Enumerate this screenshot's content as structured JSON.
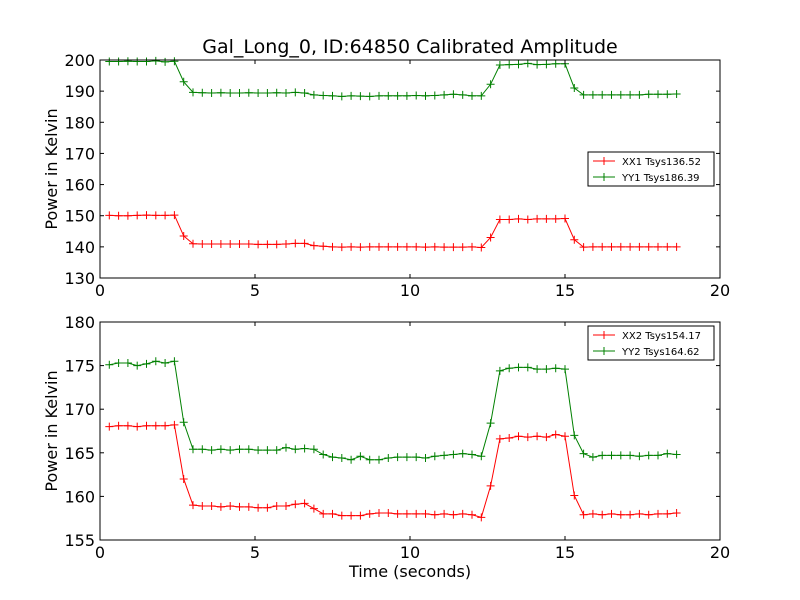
{
  "title": "Gal_Long_0, ID:64850 Calibrated Amplitude",
  "colors": {
    "xx": "#ff0000",
    "yy": "#008000",
    "axes": "#000000",
    "background": "#ffffff"
  },
  "chart_data": [
    {
      "type": "line",
      "title": "Gal_Long_0, ID:64850 Calibrated Amplitude",
      "xlabel": "",
      "ylabel": "Power in Kelvin",
      "xlim": [
        0,
        20
      ],
      "ylim": [
        130,
        200
      ],
      "xticks": [
        0,
        5,
        10,
        15,
        20
      ],
      "yticks": [
        130,
        140,
        150,
        160,
        170,
        180,
        190,
        200
      ],
      "grid": false,
      "legend_position": "center-right",
      "marker": "+",
      "x": [
        0.3,
        0.6,
        0.9,
        1.2,
        1.5,
        1.8,
        2.1,
        2.4,
        2.7,
        3.0,
        3.3,
        3.6,
        3.9,
        4.2,
        4.5,
        4.8,
        5.1,
        5.4,
        5.7,
        6.0,
        6.3,
        6.6,
        6.9,
        7.2,
        7.5,
        7.8,
        8.1,
        8.4,
        8.7,
        9.0,
        9.3,
        9.6,
        9.9,
        10.2,
        10.5,
        10.8,
        11.1,
        11.4,
        11.7,
        12.0,
        12.3,
        12.6,
        12.9,
        13.2,
        13.5,
        13.8,
        14.1,
        14.4,
        14.7,
        15.0,
        15.3,
        15.6,
        15.9,
        16.2,
        16.5,
        16.8,
        17.1,
        17.4,
        17.7,
        18.0,
        18.3,
        18.6
      ],
      "series": [
        {
          "name": "XX1 Tsys136.52",
          "color": "#ff0000",
          "values": [
            150.1,
            150.0,
            150.0,
            150.1,
            150.2,
            150.1,
            150.1,
            150.2,
            143.5,
            141.0,
            140.9,
            140.9,
            140.9,
            140.9,
            140.9,
            140.9,
            140.8,
            140.8,
            140.8,
            140.9,
            141.1,
            141.1,
            140.4,
            140.2,
            140.0,
            139.9,
            140.0,
            139.9,
            140.0,
            140.0,
            140.0,
            140.0,
            140.0,
            140.0,
            139.9,
            140.0,
            139.9,
            139.9,
            139.9,
            140.0,
            139.8,
            143.0,
            148.8,
            148.8,
            149.0,
            148.8,
            149.0,
            149.0,
            149.0,
            149.1,
            142.3,
            139.9,
            140.0,
            140.0,
            140.0,
            140.0,
            140.0,
            140.0,
            140.0,
            140.0,
            140.0,
            140.0
          ]
        },
        {
          "name": "YY1 Tsys186.39",
          "color": "#008000",
          "values": [
            199.5,
            199.5,
            199.6,
            199.5,
            199.5,
            199.7,
            199.4,
            199.6,
            193.0,
            189.6,
            189.5,
            189.4,
            189.5,
            189.4,
            189.4,
            189.5,
            189.4,
            189.4,
            189.5,
            189.4,
            189.6,
            189.4,
            188.8,
            188.6,
            188.5,
            188.3,
            188.5,
            188.4,
            188.3,
            188.5,
            188.5,
            188.5,
            188.5,
            188.6,
            188.5,
            188.6,
            188.8,
            189.0,
            188.8,
            188.5,
            188.5,
            192.2,
            198.4,
            198.5,
            198.6,
            198.9,
            198.5,
            198.6,
            198.8,
            198.8,
            191.0,
            188.8,
            188.8,
            188.8,
            188.8,
            188.8,
            188.8,
            188.8,
            189.0,
            189.0,
            189.0,
            189.1
          ]
        }
      ]
    },
    {
      "type": "line",
      "title": "",
      "xlabel": "Time (seconds)",
      "ylabel": "Power in Kelvin",
      "xlim": [
        0,
        20
      ],
      "ylim": [
        155,
        180
      ],
      "xticks": [
        0,
        5,
        10,
        15,
        20
      ],
      "yticks": [
        155,
        160,
        165,
        170,
        175,
        180
      ],
      "grid": false,
      "legend_position": "top-right",
      "marker": "+",
      "x": [
        0.3,
        0.6,
        0.9,
        1.2,
        1.5,
        1.8,
        2.1,
        2.4,
        2.7,
        3.0,
        3.3,
        3.6,
        3.9,
        4.2,
        4.5,
        4.8,
        5.1,
        5.4,
        5.7,
        6.0,
        6.3,
        6.6,
        6.9,
        7.2,
        7.5,
        7.8,
        8.1,
        8.4,
        8.7,
        9.0,
        9.3,
        9.6,
        9.9,
        10.2,
        10.5,
        10.8,
        11.1,
        11.4,
        11.7,
        12.0,
        12.3,
        12.6,
        12.9,
        13.2,
        13.5,
        13.8,
        14.1,
        14.4,
        14.7,
        15.0,
        15.3,
        15.6,
        15.9,
        16.2,
        16.5,
        16.8,
        17.1,
        17.4,
        17.7,
        18.0,
        18.3,
        18.6
      ],
      "series": [
        {
          "name": "XX2 Tsys154.17",
          "color": "#ff0000",
          "values": [
            168.0,
            168.1,
            168.1,
            168.0,
            168.1,
            168.1,
            168.1,
            168.2,
            162.0,
            159.0,
            158.9,
            158.9,
            158.8,
            158.9,
            158.8,
            158.8,
            158.7,
            158.7,
            158.9,
            158.9,
            159.1,
            159.2,
            158.6,
            158.0,
            158.0,
            157.8,
            157.8,
            157.8,
            158.0,
            158.1,
            158.1,
            158.0,
            158.0,
            158.0,
            158.0,
            157.9,
            158.0,
            157.9,
            158.0,
            157.9,
            157.6,
            161.2,
            166.6,
            166.7,
            166.9,
            166.8,
            166.9,
            166.8,
            167.1,
            166.9,
            160.1,
            157.9,
            158.0,
            157.9,
            158.0,
            157.9,
            157.9,
            158.0,
            157.9,
            158.0,
            158.0,
            158.1
          ]
        },
        {
          "name": "YY2 Tsys164.62",
          "color": "#008000",
          "values": [
            175.1,
            175.3,
            175.3,
            175.0,
            175.2,
            175.5,
            175.3,
            175.5,
            168.5,
            165.4,
            165.4,
            165.3,
            165.4,
            165.3,
            165.4,
            165.4,
            165.3,
            165.3,
            165.3,
            165.6,
            165.4,
            165.5,
            165.4,
            164.8,
            164.5,
            164.4,
            164.2,
            164.6,
            164.2,
            164.2,
            164.4,
            164.5,
            164.5,
            164.5,
            164.4,
            164.6,
            164.7,
            164.8,
            164.9,
            164.8,
            164.6,
            168.4,
            174.4,
            174.7,
            174.8,
            174.8,
            174.6,
            174.6,
            174.7,
            174.6,
            167.0,
            164.9,
            164.5,
            164.7,
            164.7,
            164.7,
            164.7,
            164.6,
            164.7,
            164.7,
            164.9,
            164.8
          ]
        }
      ]
    }
  ]
}
